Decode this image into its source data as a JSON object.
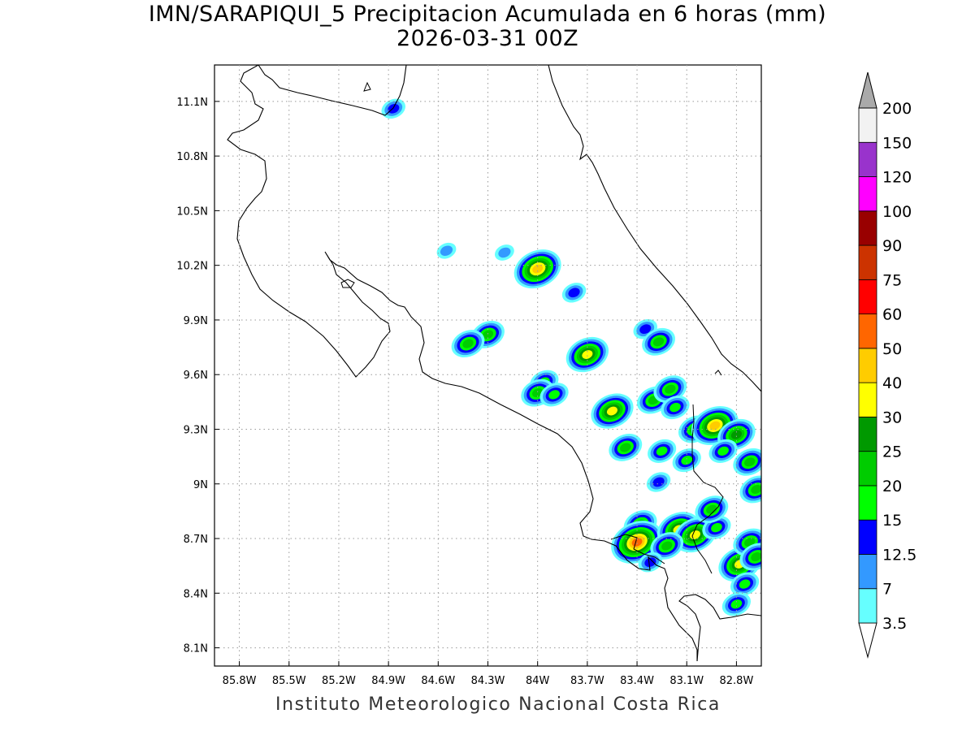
{
  "title": {
    "line1": "IMN/SARAPIQUI_5 Precipitacion Acumulada en 6 horas (mm)",
    "line2": "2026-03-31 00Z"
  },
  "footer": {
    "credit": "Instituto Meteorologico Nacional Costa Rica"
  },
  "map": {
    "lon_range": [
      -85.95,
      -82.65
    ],
    "lat_range": [
      8.0,
      11.3
    ],
    "lon_ticks": [
      {
        "value": -85.8,
        "label": "85.8W"
      },
      {
        "value": -85.5,
        "label": "85.5W"
      },
      {
        "value": -85.2,
        "label": "85.2W"
      },
      {
        "value": -84.9,
        "label": "84.9W"
      },
      {
        "value": -84.6,
        "label": "84.6W"
      },
      {
        "value": -84.3,
        "label": "84.3W"
      },
      {
        "value": -84.0,
        "label": "84W"
      },
      {
        "value": -83.7,
        "label": "83.7W"
      },
      {
        "value": -83.4,
        "label": "83.4W"
      },
      {
        "value": -83.1,
        "label": "83.1W"
      },
      {
        "value": -82.8,
        "label": "82.8W"
      }
    ],
    "lat_ticks": [
      {
        "value": 11.1,
        "label": "11.1N"
      },
      {
        "value": 10.8,
        "label": "10.8N"
      },
      {
        "value": 10.5,
        "label": "10.5N"
      },
      {
        "value": 10.2,
        "label": "10.2N"
      },
      {
        "value": 9.9,
        "label": "9.9N"
      },
      {
        "value": 9.6,
        "label": "9.6N"
      },
      {
        "value": 9.3,
        "label": "9.3N"
      },
      {
        "value": 9.0,
        "label": "9N"
      },
      {
        "value": 8.7,
        "label": "8.7N"
      },
      {
        "value": 8.4,
        "label": "8.4N"
      },
      {
        "value": 8.1,
        "label": "8.1N"
      }
    ],
    "grid": true
  },
  "legend": {
    "levels": [
      {
        "label": "3.5",
        "color": "#66ffff"
      },
      {
        "label": "7",
        "color": "#3399ff"
      },
      {
        "label": "12.5",
        "color": "#0000ff"
      },
      {
        "label": "15",
        "color": "#00ff00"
      },
      {
        "label": "20",
        "color": "#00cc00"
      },
      {
        "label": "25",
        "color": "#009900"
      },
      {
        "label": "30",
        "color": "#ffff00"
      },
      {
        "label": "40",
        "color": "#ffcc00"
      },
      {
        "label": "50",
        "color": "#ff6600"
      },
      {
        "label": "60",
        "color": "#ff0000"
      },
      {
        "label": "75",
        "color": "#cc3300"
      },
      {
        "label": "90",
        "color": "#990000"
      },
      {
        "label": "100",
        "color": "#ff00ff"
      },
      {
        "label": "120",
        "color": "#9933cc"
      },
      {
        "label": "150",
        "color": "#f2f2f2"
      },
      {
        "label": "200",
        "color": "#aaaaaa"
      }
    ]
  },
  "precip_cells": [
    {
      "lon": -84.87,
      "lat": 11.06,
      "peak_mm": 12.5
    },
    {
      "lon": -84.0,
      "lat": 10.18,
      "peak_mm": 40
    },
    {
      "lon": -84.2,
      "lat": 10.27,
      "peak_mm": 7
    },
    {
      "lon": -84.55,
      "lat": 10.28,
      "peak_mm": 7
    },
    {
      "lon": -83.78,
      "lat": 10.05,
      "peak_mm": 12.5
    },
    {
      "lon": -84.3,
      "lat": 9.82,
      "peak_mm": 20
    },
    {
      "lon": -84.42,
      "lat": 9.77,
      "peak_mm": 20
    },
    {
      "lon": -83.7,
      "lat": 9.71,
      "peak_mm": 30
    },
    {
      "lon": -83.35,
      "lat": 9.85,
      "peak_mm": 12.5
    },
    {
      "lon": -83.27,
      "lat": 9.78,
      "peak_mm": 20
    },
    {
      "lon": -83.96,
      "lat": 9.56,
      "peak_mm": 15
    },
    {
      "lon": -84.0,
      "lat": 9.5,
      "peak_mm": 20
    },
    {
      "lon": -83.9,
      "lat": 9.49,
      "peak_mm": 15
    },
    {
      "lon": -83.55,
      "lat": 9.4,
      "peak_mm": 30
    },
    {
      "lon": -83.3,
      "lat": 9.46,
      "peak_mm": 20
    },
    {
      "lon": -83.2,
      "lat": 9.52,
      "peak_mm": 20
    },
    {
      "lon": -83.17,
      "lat": 9.42,
      "peak_mm": 15
    },
    {
      "lon": -83.05,
      "lat": 9.3,
      "peak_mm": 20
    },
    {
      "lon": -83.47,
      "lat": 9.2,
      "peak_mm": 20
    },
    {
      "lon": -83.25,
      "lat": 9.18,
      "peak_mm": 15
    },
    {
      "lon": -83.1,
      "lat": 9.13,
      "peak_mm": 15
    },
    {
      "lon": -82.93,
      "lat": 9.32,
      "peak_mm": 40
    },
    {
      "lon": -82.8,
      "lat": 9.27,
      "peak_mm": 25
    },
    {
      "lon": -82.88,
      "lat": 9.18,
      "peak_mm": 15
    },
    {
      "lon": -82.72,
      "lat": 9.12,
      "peak_mm": 20
    },
    {
      "lon": -82.68,
      "lat": 8.97,
      "peak_mm": 20
    },
    {
      "lon": -83.27,
      "lat": 9.01,
      "peak_mm": 12.5
    },
    {
      "lon": -83.38,
      "lat": 8.78,
      "peak_mm": 20
    },
    {
      "lon": -83.4,
      "lat": 8.68,
      "peak_mm": 50
    },
    {
      "lon": -83.15,
      "lat": 8.75,
      "peak_mm": 30
    },
    {
      "lon": -83.05,
      "lat": 8.72,
      "peak_mm": 30
    },
    {
      "lon": -83.22,
      "lat": 8.66,
      "peak_mm": 20
    },
    {
      "lon": -82.92,
      "lat": 8.76,
      "peak_mm": 15
    },
    {
      "lon": -82.95,
      "lat": 8.86,
      "peak_mm": 20
    },
    {
      "lon": -82.78,
      "lat": 8.56,
      "peak_mm": 30
    },
    {
      "lon": -82.72,
      "lat": 8.68,
      "peak_mm": 20
    },
    {
      "lon": -82.68,
      "lat": 8.6,
      "peak_mm": 20
    },
    {
      "lon": -82.75,
      "lat": 8.45,
      "peak_mm": 15
    },
    {
      "lon": -82.8,
      "lat": 8.34,
      "peak_mm": 15
    },
    {
      "lon": -83.32,
      "lat": 8.57,
      "peak_mm": 12.5
    }
  ]
}
